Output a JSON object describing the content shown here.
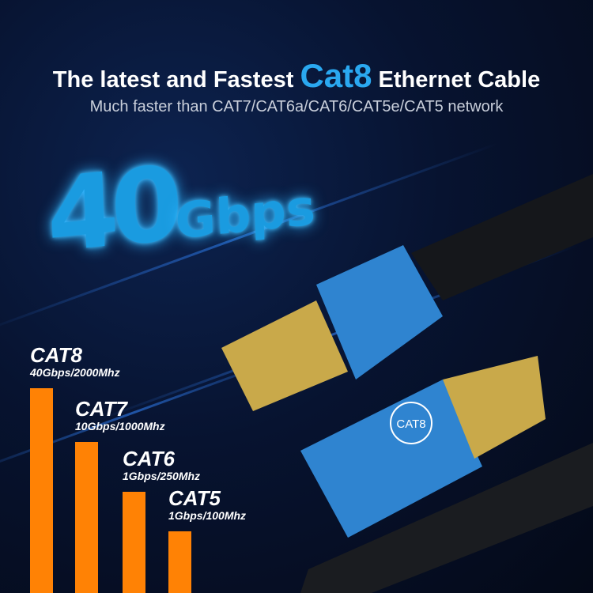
{
  "headline": {
    "before": "The latest and Fastest ",
    "accent": "Cat8",
    "after": " Ethernet Cable"
  },
  "subline": "Much faster than CAT7/CAT6a/CAT6/CAT5e/CAT5 network",
  "speed": {
    "number": "40",
    "unit": "Gbps"
  },
  "connector_badge": "CAT8",
  "colors": {
    "accent": "#2aa8f0",
    "bar": "#ff8205",
    "background": "#050b1c"
  },
  "chart_data": {
    "type": "bar",
    "categories": [
      "CAT8",
      "CAT7",
      "CAT6",
      "CAT5"
    ],
    "labels": [
      "40Gbps/2000Mhz",
      "10Gbps/1000Mhz",
      "1Gbps/250Mhz",
      "1Gbps/100Mhz"
    ],
    "values": [
      2000,
      1000,
      250,
      100
    ]
  }
}
